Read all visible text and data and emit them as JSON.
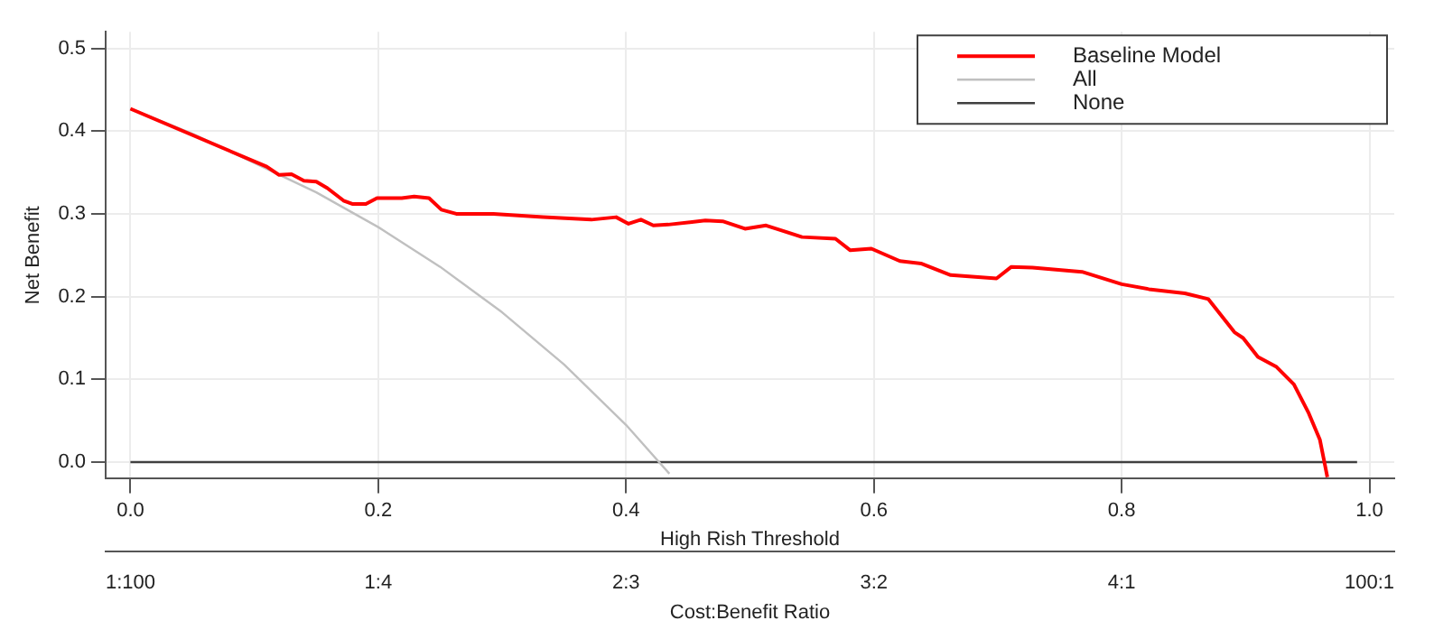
{
  "chart_data": {
    "type": "line",
    "xlabel": "High Rish Threshold",
    "ylabel": "Net Benefit",
    "x2label": "Cost:Benefit Ratio",
    "xlim": [
      -0.02,
      1.02
    ],
    "ylim": [
      -0.02,
      0.52
    ],
    "xticks": [
      {
        "value": 0,
        "label": "0.0"
      },
      {
        "value": 0.2,
        "label": "0.2"
      },
      {
        "value": 0.4,
        "label": "0.4"
      },
      {
        "value": 0.6,
        "label": "0.6"
      },
      {
        "value": 0.8,
        "label": "0.8"
      },
      {
        "value": 1,
        "label": "1.0"
      }
    ],
    "yticks": [
      {
        "value": 0,
        "label": "0.0"
      },
      {
        "value": 0.1,
        "label": "0.1"
      },
      {
        "value": 0.2,
        "label": "0.2"
      },
      {
        "value": 0.3,
        "label": "0.3"
      },
      {
        "value": 0.4,
        "label": "0.4"
      },
      {
        "value": 0.5,
        "label": "0.5"
      }
    ],
    "annotations": [
      "1:100",
      "1:4",
      "2:3",
      "3:2",
      "4:1",
      "100:1"
    ],
    "grid": true,
    "legend": "top right",
    "marker": "none",
    "line_style": "solid",
    "series": [
      {
        "name": "Baseline Model",
        "color": "#ff0000",
        "x": [
          0,
          0.11,
          0.12,
          0.13,
          0.14,
          0.15,
          0.159,
          0.172,
          0.179,
          0.19,
          0.199,
          0.219,
          0.229,
          0.241,
          0.251,
          0.263,
          0.293,
          0.333,
          0.372,
          0.392,
          0.402,
          0.412,
          0.422,
          0.434,
          0.464,
          0.478,
          0.496,
          0.513,
          0.542,
          0.569,
          0.581,
          0.598,
          0.621,
          0.638,
          0.662,
          0.699,
          0.711,
          0.728,
          0.768,
          0.8,
          0.822,
          0.851,
          0.87,
          0.891,
          0.898,
          0.91,
          0.925,
          0.939,
          0.951,
          0.96,
          0.966
        ],
        "values": [
          0.427,
          0.357,
          0.347,
          0.348,
          0.34,
          0.339,
          0.331,
          0.316,
          0.312,
          0.312,
          0.319,
          0.319,
          0.321,
          0.319,
          0.305,
          0.3,
          0.3,
          0.296,
          0.293,
          0.296,
          0.288,
          0.293,
          0.286,
          0.287,
          0.292,
          0.291,
          0.282,
          0.286,
          0.272,
          0.27,
          0.256,
          0.258,
          0.243,
          0.24,
          0.226,
          0.222,
          0.236,
          0.235,
          0.23,
          0.215,
          0.209,
          0.204,
          0.197,
          0.157,
          0.15,
          0.127,
          0.115,
          0.094,
          0.059,
          0.027,
          -0.018
        ]
      },
      {
        "name": "All",
        "color": "#c0c0c0",
        "x": [
          0,
          0.05,
          0.15,
          0.2,
          0.25,
          0.3,
          0.35,
          0.4,
          0.435
        ],
        "values": [
          0.427,
          0.397,
          0.326,
          0.284,
          0.236,
          0.181,
          0.118,
          0.045,
          -0.014
        ]
      },
      {
        "name": "None",
        "color": "#404040",
        "x": [
          0,
          0.99
        ],
        "values": [
          0,
          0
        ]
      }
    ]
  }
}
